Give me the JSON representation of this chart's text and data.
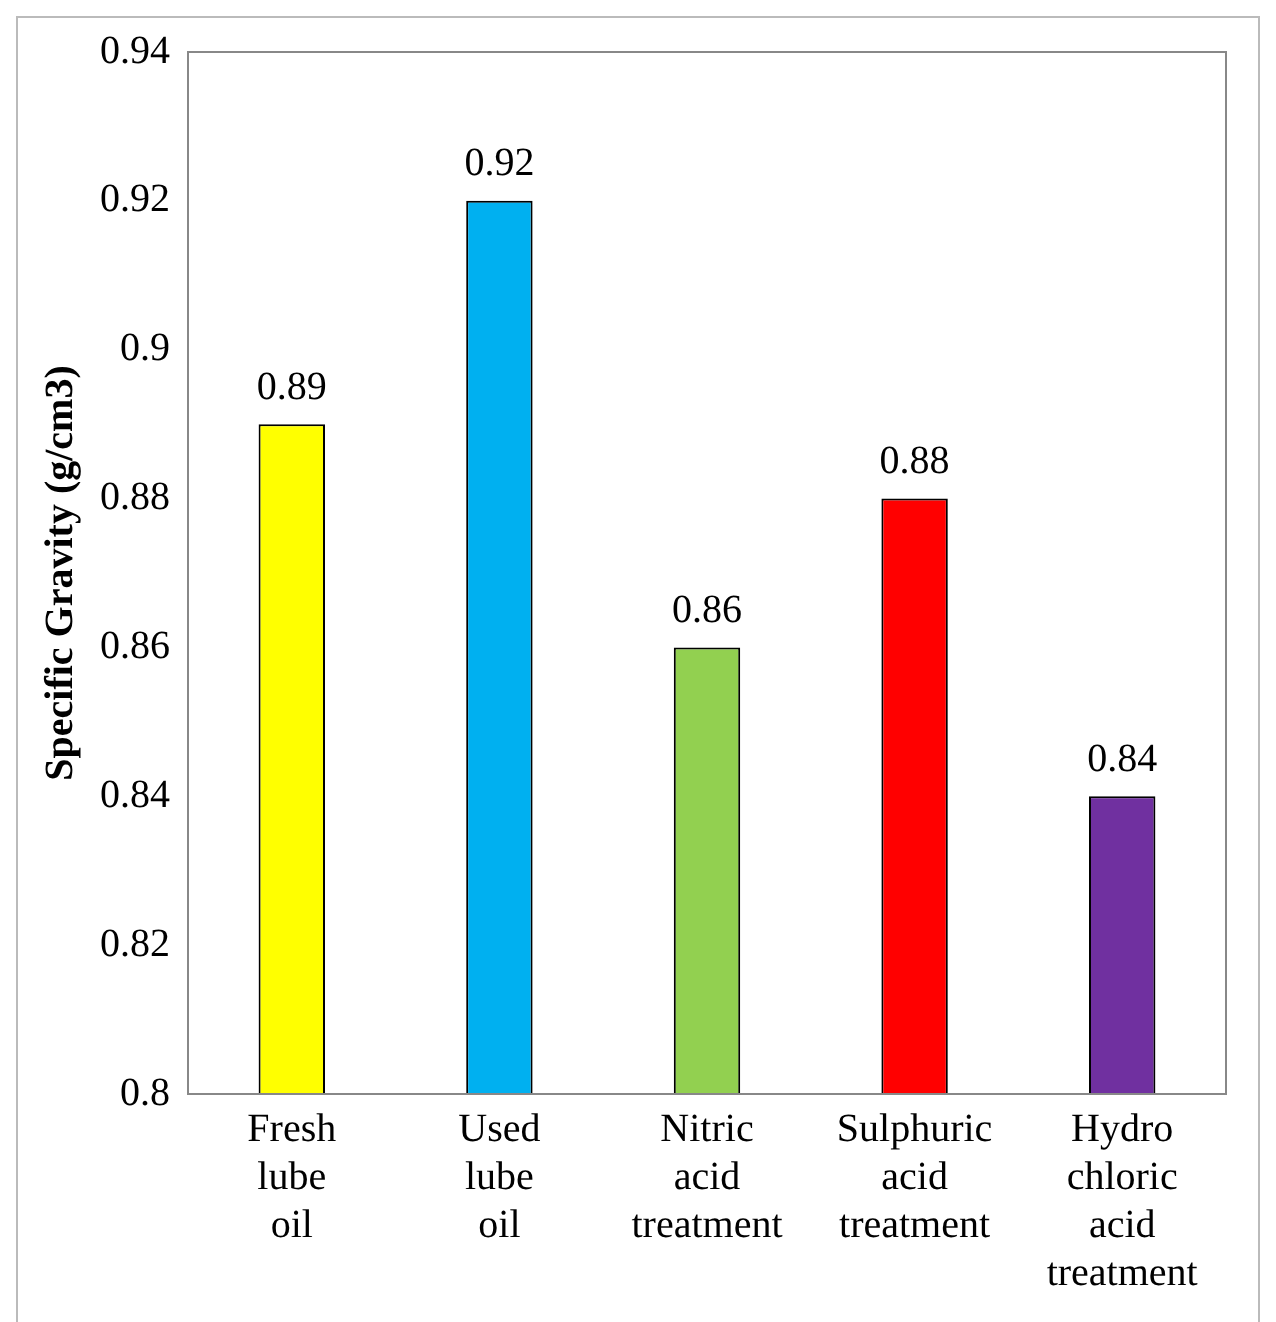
{
  "chart_data": {
    "type": "bar",
    "ylabel": "Specific Gravity (g/cm3)",
    "categories": [
      "Fresh lube oil",
      "Used lube oil",
      "Nitric acid treatment",
      "Sulphuric acid treatment",
      "Hydro chloric acid treatment"
    ],
    "values": [
      0.89,
      0.92,
      0.86,
      0.88,
      0.84
    ],
    "colors": [
      "#ffff00",
      "#00b0f0",
      "#92d050",
      "#ff0000",
      "#7030a0"
    ],
    "ylim": [
      0.8,
      0.94
    ],
    "yticks": [
      0.8,
      0.82,
      0.84,
      0.86,
      0.88,
      0.9,
      0.92,
      0.94
    ],
    "grid": false,
    "legend": false,
    "data_labels": true
  }
}
